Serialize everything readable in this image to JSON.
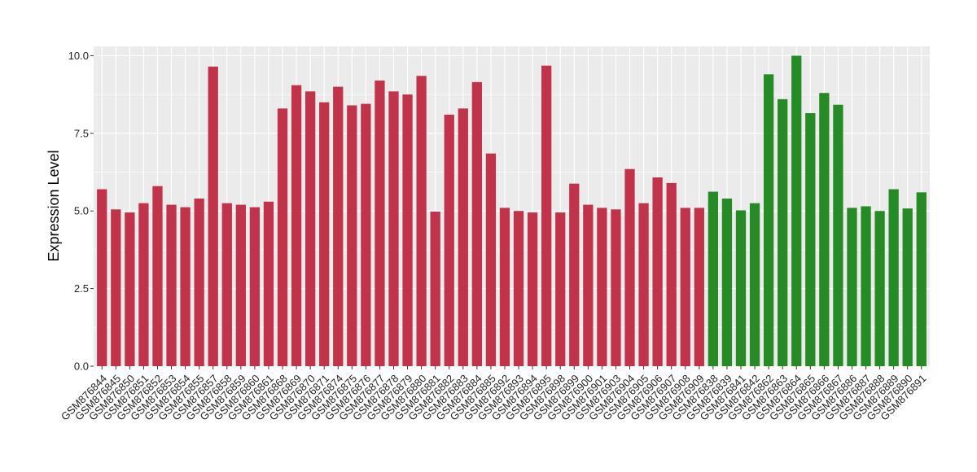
{
  "chart_data": {
    "type": "bar",
    "ylabel": "Expression Level",
    "xlabel": "",
    "ylim": [
      0,
      10.3
    ],
    "yticks": [
      "0.0",
      "2.5",
      "5.0",
      "7.5",
      "10.0"
    ],
    "grid": true,
    "legend": "none",
    "colors": {
      "red": "#C0334A",
      "green": "#268A26",
      "panel": "#EBEBEB",
      "grid": "#FFFFFF"
    },
    "categories": [
      "GSM876844",
      "GSM876845",
      "GSM876850",
      "GSM876851",
      "GSM876852",
      "GSM876853",
      "GSM876854",
      "GSM876855",
      "GSM876857",
      "GSM876858",
      "GSM876859",
      "GSM876860",
      "GSM876861",
      "GSM876868",
      "GSM876869",
      "GSM876870",
      "GSM876871",
      "GSM876874",
      "GSM876875",
      "GSM876876",
      "GSM876877",
      "GSM876878",
      "GSM876879",
      "GSM876880",
      "GSM876881",
      "GSM876882",
      "GSM876883",
      "GSM876884",
      "GSM876885",
      "GSM876892",
      "GSM876893",
      "GSM876894",
      "GSM876895",
      "GSM876898",
      "GSM876899",
      "GSM876900",
      "GSM876901",
      "GSM876903",
      "GSM876904",
      "GSM876905",
      "GSM876906",
      "GSM876907",
      "GSM876908",
      "GSM876909",
      "GSM876838",
      "GSM876839",
      "GSM876841",
      "GSM876842",
      "GSM876862",
      "GSM876863",
      "GSM876864",
      "GSM876865",
      "GSM876866",
      "GSM876867",
      "GSM876886",
      "GSM876887",
      "GSM876888",
      "GSM876889",
      "GSM876890",
      "GSM876891"
    ],
    "values": [
      5.7,
      5.05,
      4.95,
      5.25,
      5.8,
      5.2,
      5.12,
      5.4,
      9.65,
      5.25,
      5.2,
      5.12,
      5.3,
      8.3,
      9.05,
      8.85,
      8.5,
      9.0,
      8.4,
      8.45,
      9.2,
      8.85,
      8.75,
      9.35,
      4.98,
      8.1,
      8.3,
      9.15,
      6.85,
      5.1,
      5.0,
      4.95,
      9.68,
      4.95,
      5.88,
      5.2,
      5.1,
      5.05,
      6.35,
      5.25,
      6.08,
      5.9,
      5.1,
      5.1,
      5.62,
      5.4,
      5.02,
      5.25,
      9.4,
      8.6,
      10.0,
      8.15,
      8.8,
      8.42,
      5.1,
      5.15,
      5.0,
      5.7,
      5.08,
      5.6
    ],
    "groups": [
      "red",
      "red",
      "red",
      "red",
      "red",
      "red",
      "red",
      "red",
      "red",
      "red",
      "red",
      "red",
      "red",
      "red",
      "red",
      "red",
      "red",
      "red",
      "red",
      "red",
      "red",
      "red",
      "red",
      "red",
      "red",
      "red",
      "red",
      "red",
      "red",
      "red",
      "red",
      "red",
      "red",
      "red",
      "red",
      "red",
      "red",
      "red",
      "red",
      "red",
      "red",
      "red",
      "red",
      "red",
      "green",
      "green",
      "green",
      "green",
      "green",
      "green",
      "green",
      "green",
      "green",
      "green",
      "green",
      "green",
      "green",
      "green",
      "green",
      "green"
    ]
  }
}
